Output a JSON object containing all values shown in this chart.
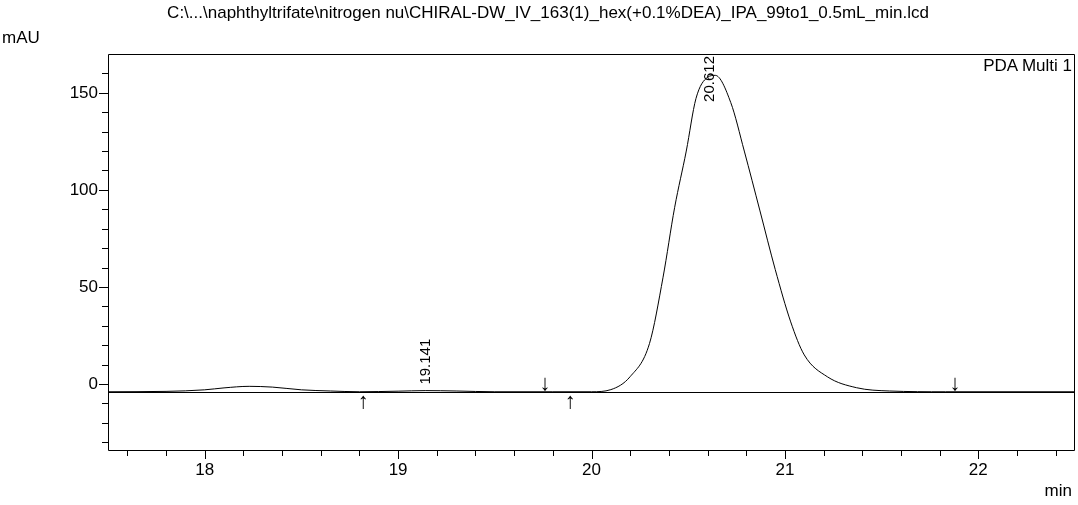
{
  "chart_data": {
    "type": "line",
    "title": "C:\\...\\naphthyltrifate\\nitrogen nu\\CHIRAL-DW_IV_163(1)_hex(+0.1%DEA)_IPA_99to1_0.5mL_min.lcd",
    "xlabel": "min",
    "ylabel": "mAU",
    "series": [
      {
        "color": "#000000",
        "x": [
          17.5,
          17.8,
          18.0,
          18.1,
          18.23,
          18.35,
          18.5,
          18.65,
          18.8,
          19.0,
          19.14,
          19.3,
          19.5,
          19.8,
          20.0,
          20.1,
          20.2,
          20.3,
          20.37,
          20.43,
          20.49,
          20.54,
          20.6,
          20.64,
          20.72,
          20.79,
          20.87,
          20.95,
          21.03,
          21.1,
          21.22,
          21.37,
          21.54,
          21.83,
          22.5
        ],
        "values": [
          -4,
          -3.8,
          -3,
          -2,
          -1.2,
          -1.6,
          -3,
          -3.6,
          -4,
          -3.7,
          -3.4,
          -3.6,
          -4,
          -4,
          -4,
          -2.9,
          3.8,
          20.9,
          55,
          91,
          120,
          147,
          158,
          159,
          145,
          120,
          89.6,
          59,
          32,
          15,
          3.7,
          -1.9,
          -3.6,
          -4,
          -4
        ]
      }
    ],
    "xlim": [
      17.5,
      22.5
    ],
    "ylim": [
      -34,
      170
    ],
    "xticks": [
      {
        "value": 17.6,
        "label": null
      },
      {
        "value": 17.8,
        "label": null
      },
      18,
      {
        "value": 18.2,
        "label": null
      },
      {
        "value": 18.4,
        "label": null
      },
      {
        "value": 18.6,
        "label": null
      },
      {
        "value": 18.8,
        "label": null
      },
      19,
      {
        "value": 19.2,
        "label": null
      },
      {
        "value": 19.4,
        "label": null
      },
      {
        "value": 19.6,
        "label": null
      },
      {
        "value": 19.8,
        "label": null
      },
      20,
      {
        "value": 20.2,
        "label": null
      },
      {
        "value": 20.4,
        "label": null
      },
      {
        "value": 20.6,
        "label": null
      },
      {
        "value": 20.8,
        "label": null
      },
      21,
      {
        "value": 21.2,
        "label": null
      },
      {
        "value": 21.4,
        "label": null
      },
      {
        "value": 21.6,
        "label": null
      },
      {
        "value": 21.8,
        "label": null
      },
      22,
      {
        "value": 22.2,
        "label": null
      },
      {
        "value": 22.4,
        "label": null
      }
    ],
    "yticks": [
      {
        "value": -30,
        "label": null
      },
      {
        "value": -20,
        "label": null
      },
      {
        "value": -10,
        "label": null
      },
      0,
      {
        "value": 10,
        "label": null
      },
      {
        "value": 20,
        "label": null
      },
      {
        "value": 30,
        "label": null
      },
      {
        "value": 40,
        "label": null
      },
      50,
      {
        "value": 60,
        "label": null
      },
      {
        "value": 70,
        "label": null
      },
      {
        "value": 80,
        "label": null
      },
      {
        "value": 90,
        "label": null
      },
      100,
      {
        "value": 110,
        "label": null
      },
      {
        "value": 120,
        "label": null
      },
      {
        "value": 130,
        "label": null
      },
      {
        "value": 140,
        "label": null
      },
      150,
      {
        "value": 160,
        "label": null
      }
    ],
    "ref_lines": [
      {
        "axis": "y",
        "value": -4,
        "color": "#000000"
      }
    ],
    "annotations": [
      "PDA Multi 1",
      {
        "text": "19.141",
        "x": 19.141,
        "y": -3.4
      },
      {
        "text": "20.612",
        "x": 20.612,
        "y": 159
      },
      {
        "text": "↑",
        "x": 18.82,
        "y": -4
      },
      {
        "text": "↓",
        "x": 19.76,
        "y": -4
      },
      {
        "text": "↑",
        "x": 19.89,
        "y": -4
      },
      {
        "text": "↓",
        "x": 21.88,
        "y": -4
      }
    ],
    "grid": false,
    "legend": false,
    "marker": "none",
    "line_style": "solid"
  }
}
